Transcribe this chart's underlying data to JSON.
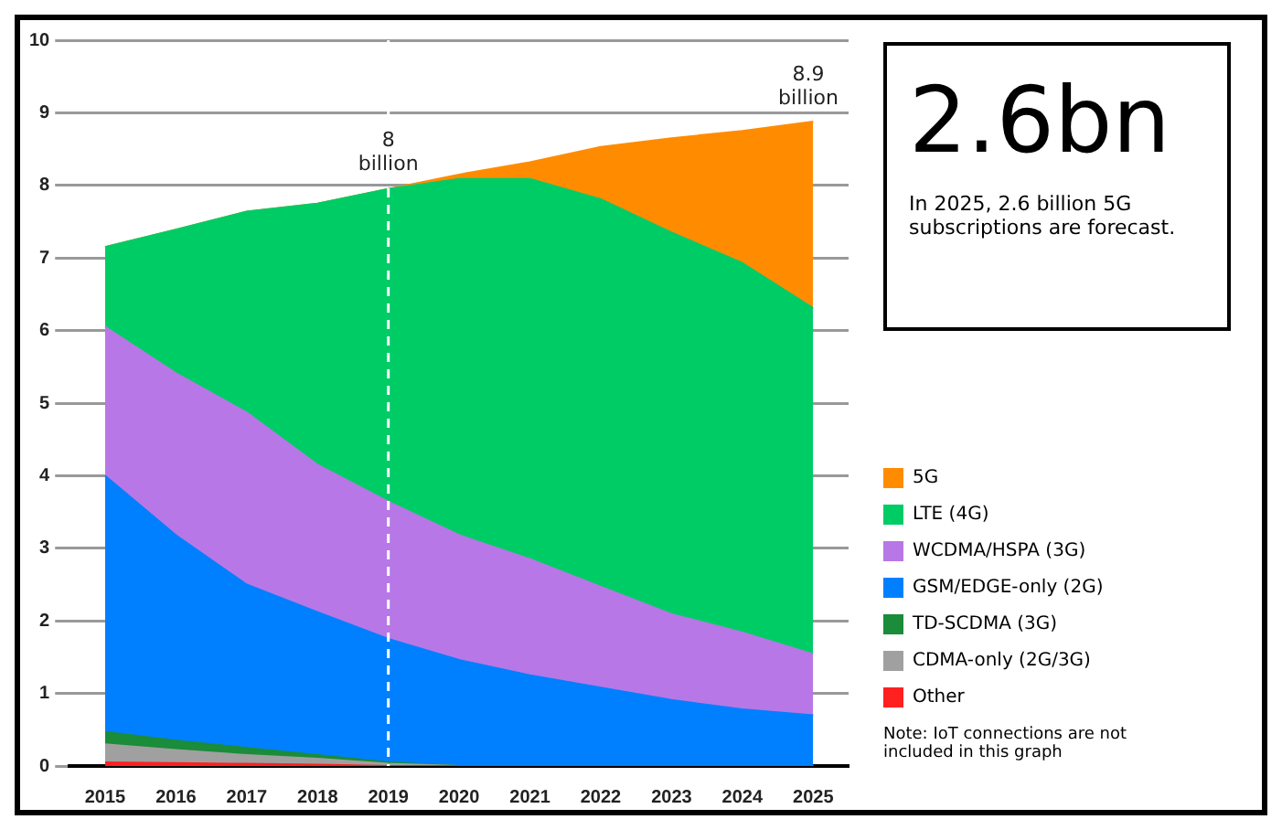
{
  "chart_data": {
    "type": "area",
    "stacked": true,
    "categories": [
      "2015",
      "2016",
      "2017",
      "2018",
      "2019",
      "2020",
      "2021",
      "2022",
      "2023",
      "2024",
      "2025"
    ],
    "series": [
      {
        "name": "Other",
        "color": "#ff2020",
        "values": [
          0.05,
          0.04,
          0.03,
          0.02,
          0,
          0,
          0,
          0,
          0,
          0,
          0
        ]
      },
      {
        "name": "CDMA-only (2G/3G)",
        "color": "#a0a0a0",
        "values": [
          0.25,
          0.18,
          0.12,
          0.08,
          0.03,
          0,
          0,
          0,
          0,
          0,
          0
        ]
      },
      {
        "name": "TD-SCDMA (3G)",
        "color": "#1a8c3a",
        "values": [
          0.17,
          0.13,
          0.1,
          0.05,
          0.02,
          0,
          0,
          0,
          0,
          0,
          0
        ]
      },
      {
        "name": "GSM/EDGE-only (2G)",
        "color": "#0080ff",
        "values": [
          3.53,
          2.83,
          2.25,
          1.97,
          1.7,
          1.46,
          1.25,
          1.08,
          0.91,
          0.78,
          0.7
        ]
      },
      {
        "name": "WCDMA/HSPA (3G)",
        "color": "#b877e6",
        "values": [
          2.05,
          2.23,
          2.37,
          2.03,
          1.89,
          1.72,
          1.6,
          1.39,
          1.18,
          1.06,
          0.84
        ]
      },
      {
        "name": "LTE (4G)",
        "color": "#00cc66",
        "values": [
          1.1,
          1.98,
          2.77,
          3.6,
          4.31,
          4.91,
          5.24,
          5.34,
          5.26,
          5.09,
          4.77
        ]
      },
      {
        "name": "5G",
        "color": "#ff8c00",
        "values": [
          0,
          0,
          0,
          0,
          0,
          0.06,
          0.23,
          0.72,
          1.3,
          1.82,
          2.57
        ]
      }
    ],
    "ylim": [
      0,
      10
    ],
    "yticks": [
      0,
      1,
      2,
      3,
      4,
      5,
      6,
      7,
      8,
      9,
      10
    ],
    "grid": "y",
    "legend": "right",
    "ref_lines": [
      {
        "axis": "x",
        "value": "2019",
        "color": "#ffffff",
        "line_style": "dashed"
      }
    ],
    "annotations": [
      {
        "text": "8 billion",
        "x": "2019",
        "y": 8
      },
      {
        "text": "8.9 billion",
        "x": "2025",
        "y": 8.9
      },
      "2.6bn",
      "In 2025, 2.6 billion 5G subscriptions are forecast.",
      "Note: IoT connections are not included in this graph"
    ]
  }
}
